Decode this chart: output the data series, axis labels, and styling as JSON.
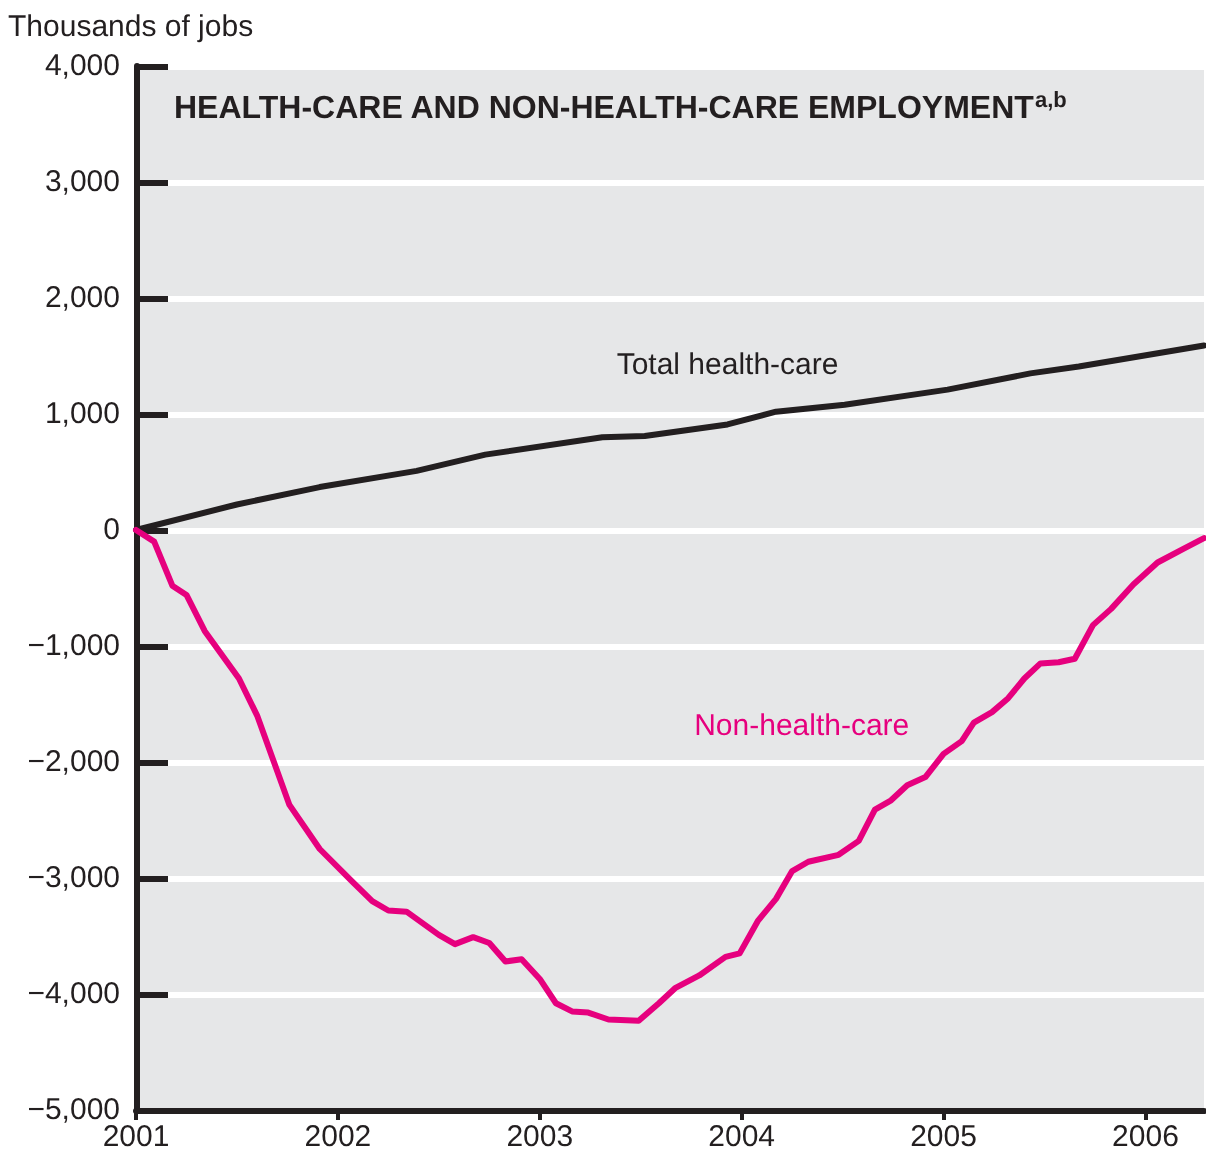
{
  "chart_data": {
    "type": "line",
    "title": "HEALTH-CARE AND NON-HEALTH-CARE EMPLOYMENT$^{a,b}$",
    "ylabel": "Thousands of jobs",
    "xlim": [
      2001,
      2006.29
    ],
    "xticks": [
      2001,
      2002,
      2003,
      2004,
      2005,
      2006
    ],
    "ylim": [
      -5000,
      4000
    ],
    "yticks": [
      {
        "value": -5000,
        "label": "−5,000"
      },
      {
        "value": -4000,
        "label": "−4,000"
      },
      {
        "value": -3000,
        "label": "−3,000"
      },
      {
        "value": -2000,
        "label": "−2,000"
      },
      {
        "value": -1000,
        "label": "−1,000"
      },
      {
        "value": 0,
        "label": "0"
      },
      {
        "value": 1000,
        "label": "1,000"
      },
      {
        "value": 2000,
        "label": "2,000"
      },
      {
        "value": 3000,
        "label": "3,000"
      },
      {
        "value": 4000,
        "label": "4,000"
      }
    ],
    "grid": "y",
    "legend": false,
    "marker": "none",
    "line_style": "solid",
    "series": [
      {
        "name": "Total health-care",
        "color": "#231f20",
        "x": [
          2001.0,
          2001.5,
          2001.91,
          2002.39,
          2002.73,
          2003.31,
          2003.52,
          2003.93,
          2004.17,
          2004.51,
          2005.02,
          2005.43,
          2005.67,
          2006.29
        ],
        "values": [
          0,
          220,
          370,
          510,
          650,
          800,
          810,
          910,
          1020,
          1080,
          1210,
          1350,
          1410,
          1590
        ]
      },
      {
        "name": "Non-health-care",
        "color": "#e6007e",
        "x": [
          2001.0,
          2001.09,
          2001.18,
          2001.25,
          2001.34,
          2001.51,
          2001.6,
          2001.76,
          2001.91,
          2002.07,
          2002.17,
          2002.25,
          2002.34,
          2002.5,
          2002.58,
          2002.67,
          2002.75,
          2002.83,
          2002.91,
          2003.0,
          2003.08,
          2003.16,
          2003.24,
          2003.34,
          2003.49,
          2003.59,
          2003.67,
          2003.79,
          2003.92,
          2003.99,
          2004.08,
          2004.17,
          2004.25,
          2004.33,
          2004.48,
          2004.58,
          2004.66,
          2004.74,
          2004.82,
          2004.91,
          2005.0,
          2005.09,
          2005.15,
          2005.24,
          2005.32,
          2005.4,
          2005.48,
          2005.57,
          2005.65,
          2005.74,
          2005.83,
          2005.94,
          2006.06,
          2006.19,
          2006.29
        ],
        "values": [
          0,
          -100,
          -480,
          -560,
          -870,
          -1280,
          -1600,
          -2370,
          -2750,
          -3030,
          -3200,
          -3280,
          -3290,
          -3490,
          -3570,
          -3510,
          -3560,
          -3720,
          -3700,
          -3870,
          -4080,
          -4150,
          -4160,
          -4220,
          -4230,
          -4080,
          -3950,
          -3840,
          -3680,
          -3650,
          -3370,
          -3180,
          -2940,
          -2860,
          -2800,
          -2680,
          -2410,
          -2330,
          -2200,
          -2130,
          -1930,
          -1820,
          -1660,
          -1570,
          -1450,
          -1280,
          -1150,
          -1140,
          -1110,
          -820,
          -680,
          -470,
          -280,
          -160,
          -70
        ]
      }
    ]
  }
}
